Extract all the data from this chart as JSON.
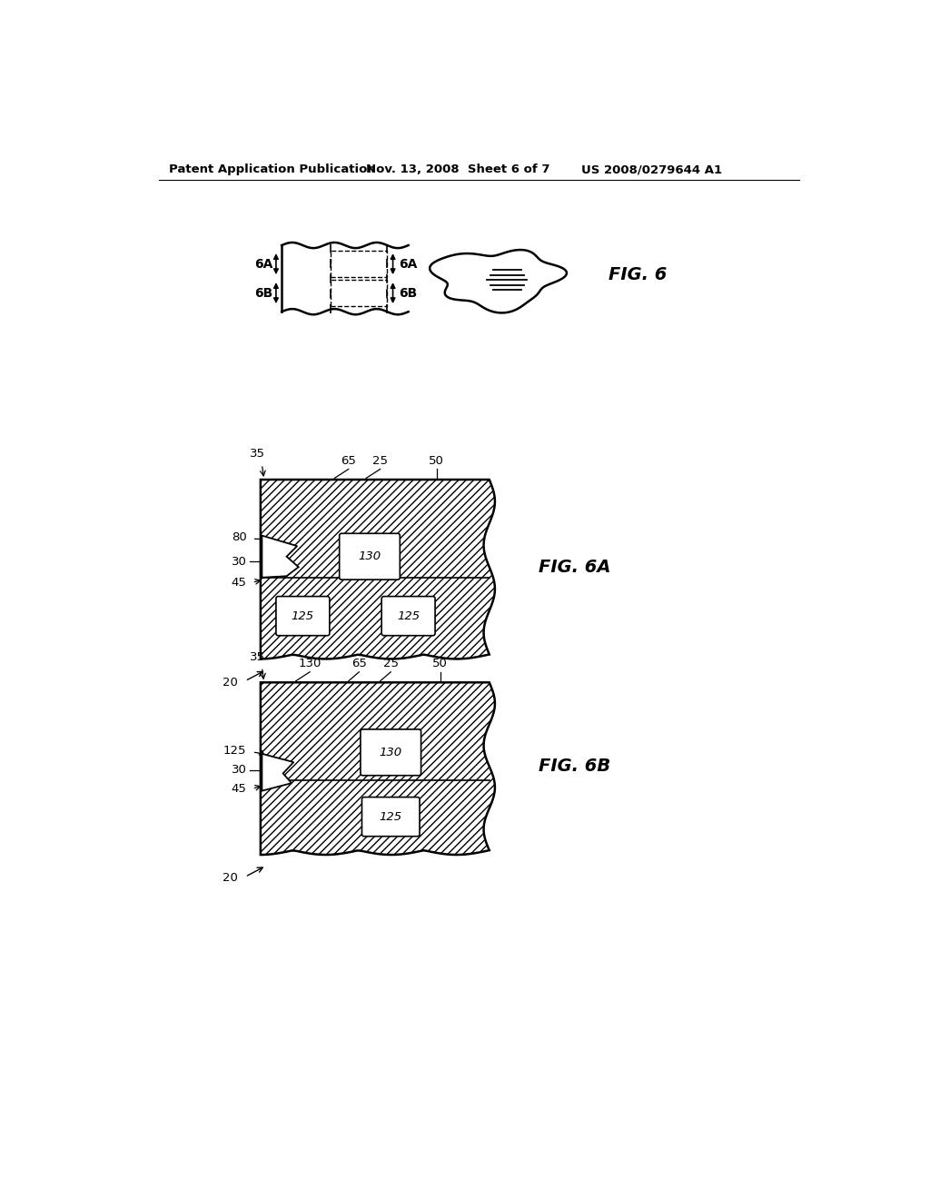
{
  "bg_color": "#ffffff",
  "header_left": "Patent Application Publication",
  "header_mid": "Nov. 13, 2008  Sheet 6 of 7",
  "header_right": "US 2008/0279644 A1",
  "fig6_label": "FIG. 6",
  "fig6a_label": "FIG. 6A",
  "fig6b_label": "FIG. 6B",
  "hatch_density": "////",
  "line_color": "#000000"
}
